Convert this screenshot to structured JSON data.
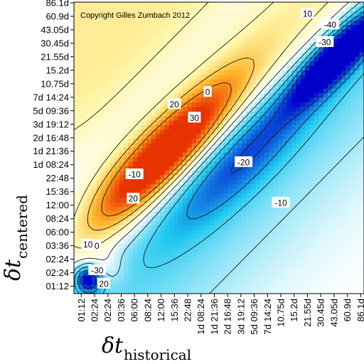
{
  "chart_data": {
    "type": "heatmap",
    "title": "",
    "annotation": "Copyright Gilles Zumbach 2012",
    "xlabel": {
      "main": "δt",
      "subscript": "historical"
    },
    "ylabel": {
      "main": "δt",
      "subscript": "centered"
    },
    "x_ticks": [
      "01:12",
      "02:24",
      "02:24",
      "03:36",
      "06:00",
      "08:24",
      "12:00",
      "15:36",
      "22:48",
      "1d 08:24",
      "1d 21:36",
      "2d 16:48",
      "3d 19:12",
      "5d 09:36",
      "7d 14:24",
      "10.75d",
      "15.2d",
      "21.55d",
      "30.45d",
      "43.05d",
      "60.9d",
      "86.1d"
    ],
    "y_ticks": [
      "86.1d",
      "60.9d",
      "43.05d",
      "30.45d",
      "21.55d",
      "15.2d",
      "10.75d",
      "7d 14:24",
      "5d 09:36",
      "3d 19:12",
      "2d 16:48",
      "1d 21:36",
      "1d 08:24",
      "22:48",
      "15:36",
      "12:00",
      "08:24",
      "06:00",
      "03:36",
      "02:24",
      "02:24",
      "01:12"
    ],
    "contour_levels": [
      -40,
      -30,
      -20,
      -10,
      0,
      10,
      20,
      30
    ],
    "contour_labels": [
      {
        "text": "10",
        "tx": 1.0,
        "ty": 3.0
      },
      {
        "text": "20",
        "tx": 3.9,
        "ty": 6.5
      },
      {
        "text": "30",
        "tx": 8.5,
        "ty": 12.5
      },
      {
        "text": "20",
        "tx": 7.0,
        "ty": 13.5
      },
      {
        "text": "-10",
        "tx": 4.0,
        "ty": 8.3
      },
      {
        "text": "10",
        "tx": 17.0,
        "ty": 20.2
      },
      {
        "text": "0",
        "tx": 9.5,
        "ty": 14.4
      },
      {
        "text": "-10",
        "tx": 16.8,
        "ty": 22.2
      },
      {
        "text": "-20",
        "tx": 12.2,
        "ty": 9.2
      },
      {
        "text": "-10",
        "tx": 15.0,
        "ty": 6.2
      },
      {
        "text": "-30",
        "tx": 18.3,
        "ty": 18.1
      },
      {
        "text": "-40",
        "tx": 18.7,
        "ty": 19.4
      },
      {
        "text": "-30",
        "tx": 20.0,
        "ty": 21.8
      },
      {
        "text": "10",
        "tx": 0.5,
        "ty": 3.1
      },
      {
        "text": "-30",
        "tx": 1.2,
        "ty": 1.2
      },
      {
        "text": "20",
        "tx": 1.7,
        "ty": 0.2
      }
    ],
    "colormap": {
      "positive_max": "#e83200",
      "positive_mid": "#ffb428",
      "zero": "#ffffff",
      "negative_mid": "#1ec8f0",
      "negative_max": "#0000c8"
    }
  }
}
